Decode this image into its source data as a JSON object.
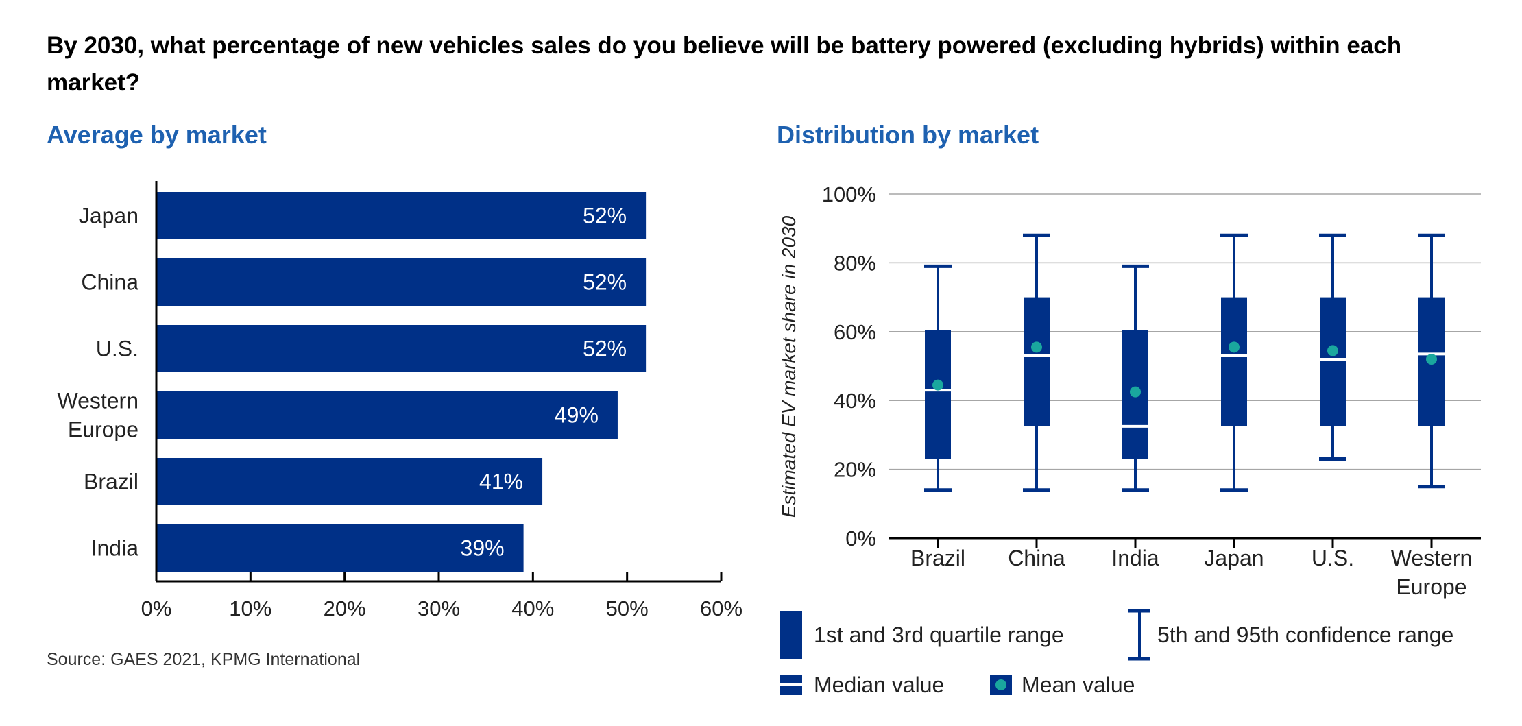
{
  "question": "By 2030, what percentage of new vehicles sales do you believe will be battery powered (excluding hybrids) within each market?",
  "source": "Source: GAES 2021, KPMG International",
  "colors": {
    "bar": "#003087",
    "mean_dot": "#1aa79e",
    "median_line": "#ffffff",
    "subtitle": "#1e61b0",
    "grid": "#a6a6a6"
  },
  "chart_data": [
    {
      "type": "bar",
      "orientation": "horizontal",
      "title": "Average by market",
      "categories": [
        [
          "Japan"
        ],
        [
          "China"
        ],
        [
          "U.S."
        ],
        [
          "Western",
          "Europe"
        ],
        [
          "Brazil"
        ],
        [
          "India"
        ]
      ],
      "values": [
        52,
        52,
        52,
        49,
        41,
        39
      ],
      "value_labels": [
        "52%",
        "52%",
        "52%",
        "49%",
        "41%",
        "39%"
      ],
      "xlim": [
        0,
        60
      ],
      "xticks": [
        0,
        10,
        20,
        30,
        40,
        50,
        60
      ],
      "xtick_labels": [
        "0%",
        "10%",
        "20%",
        "30%",
        "40%",
        "50%",
        "60%"
      ],
      "grid": false
    },
    {
      "type": "boxplot",
      "title": "Distribution by market",
      "ylabel": "Estimated EV market share in 2030",
      "categories": [
        [
          "Brazil"
        ],
        [
          "China"
        ],
        [
          "India"
        ],
        [
          "Japan"
        ],
        [
          "U.S."
        ],
        [
          "Western",
          "Europe"
        ]
      ],
      "series": [
        {
          "p5": 14,
          "q1": 23,
          "median": 43,
          "q3": 60.5,
          "p95": 79,
          "mean": 44.5
        },
        {
          "p5": 14,
          "q1": 32.5,
          "median": 53,
          "q3": 70,
          "p95": 88,
          "mean": 55.5
        },
        {
          "p5": 14,
          "q1": 23,
          "median": 32.5,
          "q3": 60.5,
          "p95": 79,
          "mean": 42.5
        },
        {
          "p5": 14,
          "q1": 32.5,
          "median": 53,
          "q3": 70,
          "p95": 88,
          "mean": 55.5
        },
        {
          "p5": 23,
          "q1": 32.5,
          "median": 52,
          "q3": 70,
          "p95": 88,
          "mean": 54.5
        },
        {
          "p5": 15,
          "q1": 32.5,
          "median": 53.5,
          "q3": 70,
          "p95": 88,
          "mean": 52
        }
      ],
      "ylim": [
        0,
        100
      ],
      "yticks": [
        0,
        20,
        40,
        60,
        80,
        100
      ],
      "ytick_labels": [
        "0%",
        "20%",
        "40%",
        "60%",
        "80%",
        "100%"
      ],
      "grid": true,
      "legend": {
        "quartile": "1st and 3rd quartile range",
        "confidence": "5th and 95th confidence range",
        "median": "Median value",
        "mean": "Mean value"
      }
    }
  ]
}
